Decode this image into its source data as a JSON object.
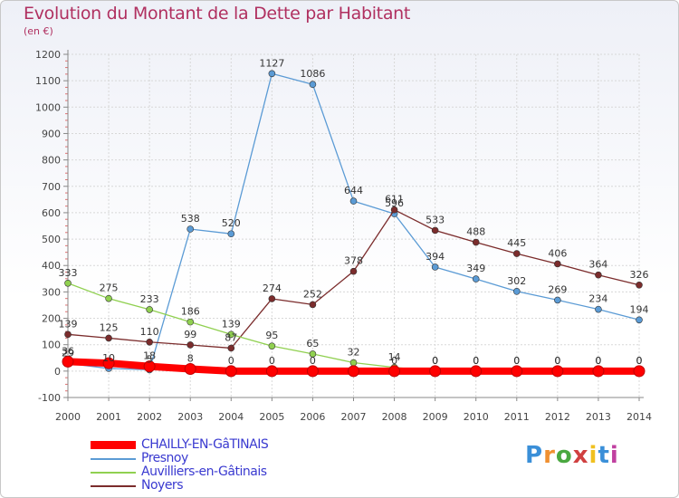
{
  "chart_data": {
    "type": "line",
    "title": "Evolution du Montant de la Dette par Habitant",
    "subtitle": "(en €)",
    "x": [
      "2000",
      "2001",
      "2002",
      "2003",
      "2004",
      "2005",
      "2006",
      "2007",
      "2008",
      "2009",
      "2010",
      "2011",
      "2012",
      "2013",
      "2014"
    ],
    "ylim": [
      -100,
      1200
    ],
    "yticks": [
      -100,
      0,
      100,
      200,
      300,
      400,
      500,
      600,
      700,
      800,
      900,
      1000,
      1100,
      1200
    ],
    "grid": true,
    "legend_position": "bottom-left",
    "series": [
      {
        "name": "CHAILLY-EN-GâTINAIS",
        "color": "#ff0000",
        "values": [
          36,
          30,
          18,
          8,
          0,
          0,
          0,
          0,
          0,
          0,
          0,
          0,
          0,
          0,
          0
        ],
        "labels": [
          "36",
          "",
          "18",
          "8",
          "0",
          "0",
          "0",
          "",
          "0",
          "0",
          "0",
          "0",
          "0",
          "0",
          "0"
        ]
      },
      {
        "name": "Presnoy",
        "color": "#5b9bd5",
        "values": [
          29,
          10,
          5,
          538,
          520,
          1127,
          1086,
          644,
          596,
          394,
          349,
          302,
          269,
          234,
          194
        ],
        "labels": [
          "29",
          "10",
          "5",
          "538",
          "520",
          "1127",
          "1086",
          "644",
          "596",
          "394",
          "349",
          "302",
          "269",
          "234",
          "194"
        ]
      },
      {
        "name": "Auvilliers-en-Gâtinais",
        "color": "#90d050",
        "values": [
          333,
          275,
          233,
          186,
          139,
          95,
          65,
          32,
          14,
          0,
          0,
          0,
          0,
          0,
          0
        ],
        "labels": [
          "333",
          "275",
          "233",
          "186",
          "139",
          "95",
          "65",
          "32",
          "14",
          "0",
          "0",
          "0",
          "0",
          "0",
          "0"
        ]
      },
      {
        "name": "Noyers",
        "color": "#7b2c2c",
        "values": [
          139,
          125,
          110,
          99,
          87,
          274,
          252,
          378,
          611,
          533,
          488,
          445,
          406,
          364,
          326
        ],
        "labels": [
          "139",
          "125",
          "110",
          "99",
          "87",
          "274",
          "252",
          "378",
          "611",
          "533",
          "488",
          "445",
          "406",
          "364",
          "326"
        ]
      }
    ]
  },
  "legend": {
    "items": [
      {
        "label": "CHAILLY-EN-GâTINAIS",
        "color": "#ff0000"
      },
      {
        "label": "Presnoy",
        "color": "#5b9bd5"
      },
      {
        "label": "Auvilliers-en-Gâtinais",
        "color": "#90d050"
      },
      {
        "label": "Noyers",
        "color": "#7b2c2c"
      }
    ]
  },
  "logo": {
    "text": "Proxiti"
  }
}
